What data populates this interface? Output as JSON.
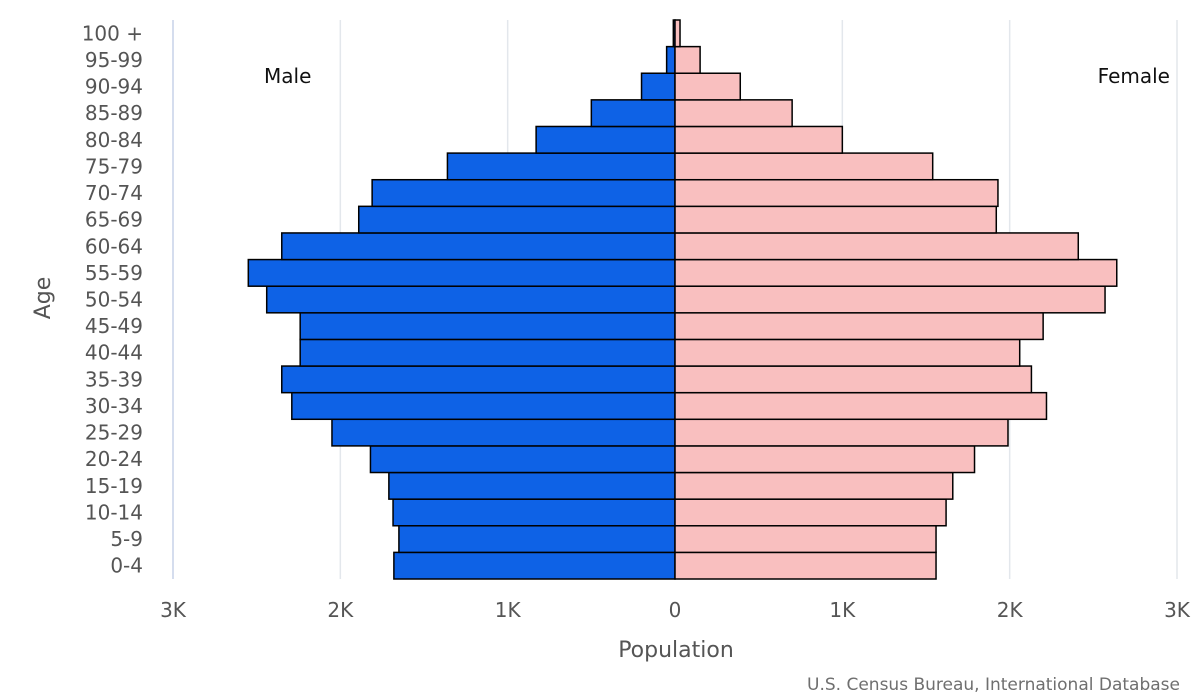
{
  "chart_data": {
    "type": "bar",
    "orientation": "horizontal-population-pyramid",
    "categories": [
      "0-4",
      "5-9",
      "10-14",
      "15-19",
      "20-24",
      "25-29",
      "30-34",
      "35-39",
      "40-44",
      "45-49",
      "50-54",
      "55-59",
      "60-64",
      "65-69",
      "70-74",
      "75-79",
      "80-84",
      "85-89",
      "90-94",
      "95-99",
      "100 +"
    ],
    "series": [
      {
        "name": "Male",
        "color": "#0e62e6",
        "values": [
          1680,
          1650,
          1685,
          1710,
          1820,
          2050,
          2290,
          2350,
          2240,
          2240,
          2440,
          2550,
          2350,
          1890,
          1810,
          1360,
          830,
          500,
          200,
          50,
          10
        ]
      },
      {
        "name": "Female",
        "color": "#f9bfbf",
        "values": [
          1560,
          1560,
          1620,
          1660,
          1790,
          1990,
          2220,
          2130,
          2060,
          2200,
          2570,
          2640,
          2410,
          1920,
          1930,
          1540,
          1000,
          700,
          390,
          150,
          30
        ]
      }
    ],
    "xlabel": "Population",
    "ylabel": "Age",
    "xlim": [
      -3000,
      3000
    ],
    "x_ticks": [
      "3K",
      "2K",
      "1K",
      "0",
      "1K",
      "2K",
      "3K"
    ],
    "grid": "vertical",
    "legend": "inline-top",
    "credit": "U.S. Census Bureau, International Database"
  }
}
